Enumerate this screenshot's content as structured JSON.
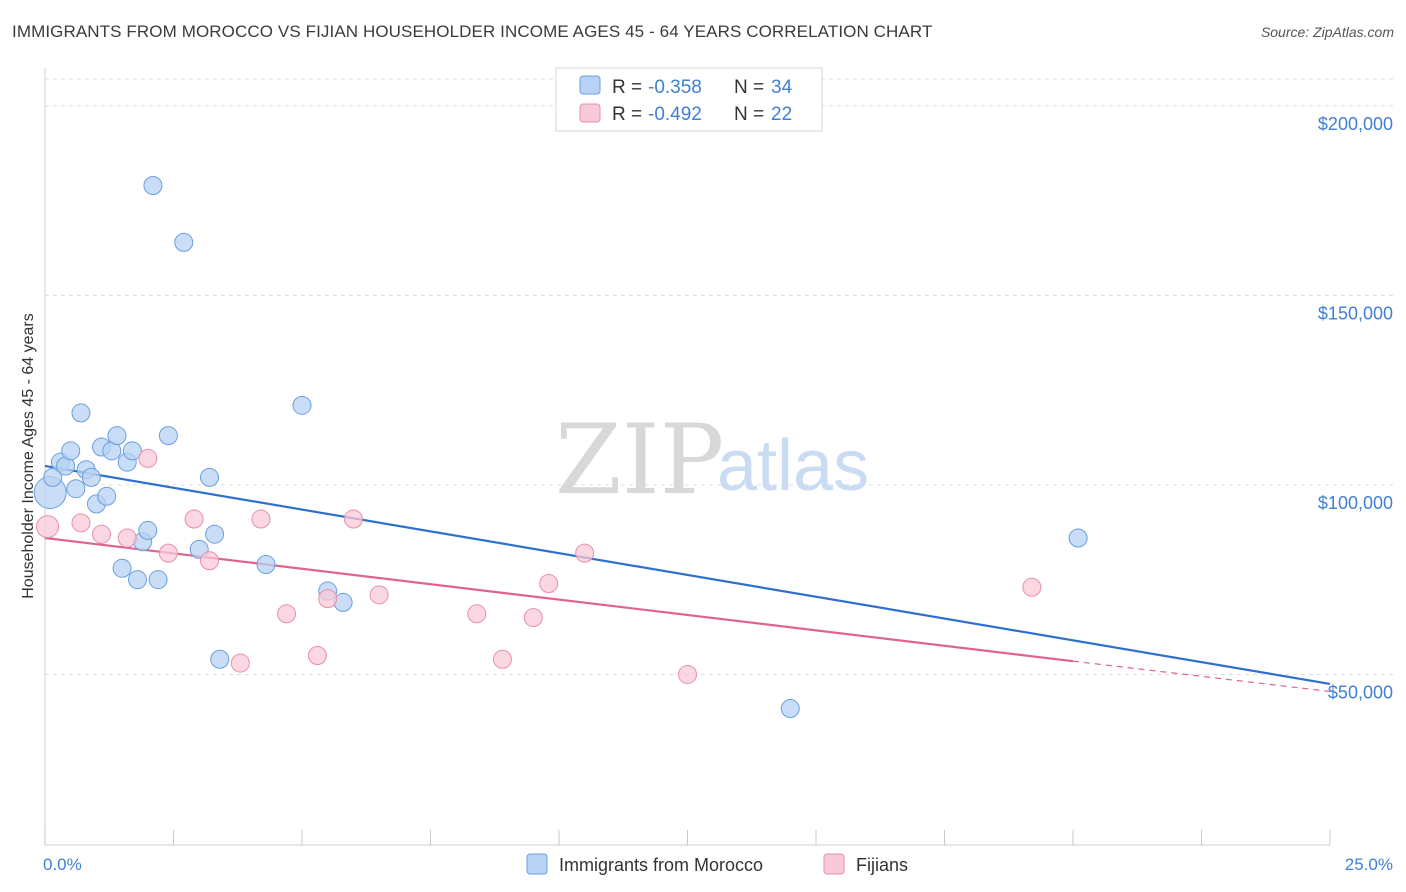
{
  "title": "IMMIGRANTS FROM MOROCCO VS FIJIAN HOUSEHOLDER INCOME AGES 45 - 64 YEARS CORRELATION CHART",
  "source": "Source: ZipAtlas.com",
  "watermark": {
    "zip": "ZIP",
    "atlas": "atlas"
  },
  "colors": {
    "blue_fill": "#b8d2f3",
    "blue_stroke": "#6a9fe0",
    "blue_line": "#2f6fcf",
    "pink_fill": "#f8c9d7",
    "pink_stroke": "#e88fab",
    "pink_line": "#e0628f",
    "grid": "#dcdcdc",
    "axis_text": "#3f7fd6"
  },
  "legend_box": [
    {
      "r_label": "R = ",
      "r_value": "-0.358",
      "n_label": "N = ",
      "n_value": "34"
    },
    {
      "r_label": "R = ",
      "r_value": "-0.492",
      "n_label": "N = ",
      "n_value": "22"
    }
  ],
  "chart_data": {
    "type": "scatter",
    "title": "IMMIGRANTS FROM MOROCCO VS FIJIAN HOUSEHOLDER INCOME AGES 45 - 64 YEARS CORRELATION CHART",
    "xlabel": "",
    "ylabel": "Householder Income Ages 45 - 64 years",
    "xlim": [
      0,
      25
    ],
    "ylim": [
      5000,
      210000
    ],
    "x_tick_labels": [
      {
        "value": 0,
        "label": "0.0%"
      },
      {
        "value": 25,
        "label": "25.0%"
      }
    ],
    "y_tick_labels": [
      {
        "value": 200000,
        "label": "$200,000"
      },
      {
        "value": 150000,
        "label": "$150,000"
      },
      {
        "value": 100000,
        "label": "$100,000"
      },
      {
        "value": 50000,
        "label": "$50,000"
      }
    ],
    "y_gridlines": [
      50000,
      100000,
      150000,
      200000
    ],
    "x_ticks": [
      0,
      2.5,
      5,
      7.5,
      10,
      12.5,
      15,
      17.5,
      20,
      22.5,
      25
    ],
    "series": [
      {
        "name": "Immigrants from Morocco",
        "color": "blue",
        "R": -0.358,
        "N": 34,
        "trend": {
          "x": [
            0,
            25
          ],
          "y": [
            105000,
            47500
          ]
        },
        "points": [
          {
            "x": 0.1,
            "y": 98000,
            "size": 16
          },
          {
            "x": 0.15,
            "y": 102000,
            "size": 9
          },
          {
            "x": 0.3,
            "y": 106000,
            "size": 9
          },
          {
            "x": 0.4,
            "y": 105000,
            "size": 9
          },
          {
            "x": 0.5,
            "y": 109000,
            "size": 9
          },
          {
            "x": 0.6,
            "y": 99000,
            "size": 9
          },
          {
            "x": 0.7,
            "y": 119000,
            "size": 9
          },
          {
            "x": 0.8,
            "y": 104000,
            "size": 9
          },
          {
            "x": 0.9,
            "y": 102000,
            "size": 9
          },
          {
            "x": 1.0,
            "y": 95000,
            "size": 9
          },
          {
            "x": 1.1,
            "y": 110000,
            "size": 9
          },
          {
            "x": 1.2,
            "y": 97000,
            "size": 9
          },
          {
            "x": 1.3,
            "y": 109000,
            "size": 9
          },
          {
            "x": 1.4,
            "y": 113000,
            "size": 9
          },
          {
            "x": 1.5,
            "y": 78000,
            "size": 9
          },
          {
            "x": 1.6,
            "y": 106000,
            "size": 9
          },
          {
            "x": 1.7,
            "y": 109000,
            "size": 9
          },
          {
            "x": 1.8,
            "y": 75000,
            "size": 9
          },
          {
            "x": 1.9,
            "y": 85000,
            "size": 9
          },
          {
            "x": 2.0,
            "y": 88000,
            "size": 9
          },
          {
            "x": 2.1,
            "y": 179000,
            "size": 9
          },
          {
            "x": 2.2,
            "y": 75000,
            "size": 9
          },
          {
            "x": 2.4,
            "y": 113000,
            "size": 9
          },
          {
            "x": 2.7,
            "y": 164000,
            "size": 9
          },
          {
            "x": 3.0,
            "y": 83000,
            "size": 9
          },
          {
            "x": 3.2,
            "y": 102000,
            "size": 9
          },
          {
            "x": 3.3,
            "y": 87000,
            "size": 9
          },
          {
            "x": 3.4,
            "y": 54000,
            "size": 9
          },
          {
            "x": 4.3,
            "y": 79000,
            "size": 9
          },
          {
            "x": 5.0,
            "y": 121000,
            "size": 9
          },
          {
            "x": 5.5,
            "y": 72000,
            "size": 9
          },
          {
            "x": 5.8,
            "y": 69000,
            "size": 9
          },
          {
            "x": 14.5,
            "y": 41000,
            "size": 9
          },
          {
            "x": 20.1,
            "y": 86000,
            "size": 9
          }
        ]
      },
      {
        "name": "Fijians",
        "color": "pink",
        "R": -0.492,
        "N": 22,
        "trend": {
          "x": [
            0,
            20
          ],
          "y": [
            86000,
            53500
          ]
        },
        "trend_dashed": {
          "x": [
            20,
            25
          ],
          "y": [
            53500,
            45500
          ]
        },
        "points": [
          {
            "x": 0.05,
            "y": 89000,
            "size": 11
          },
          {
            "x": 0.7,
            "y": 90000,
            "size": 9
          },
          {
            "x": 1.1,
            "y": 87000,
            "size": 9
          },
          {
            "x": 1.6,
            "y": 86000,
            "size": 9
          },
          {
            "x": 2.4,
            "y": 82000,
            "size": 9
          },
          {
            "x": 2.0,
            "y": 107000,
            "size": 9
          },
          {
            "x": 2.9,
            "y": 91000,
            "size": 9
          },
          {
            "x": 3.2,
            "y": 80000,
            "size": 9
          },
          {
            "x": 3.8,
            "y": 53000,
            "size": 9
          },
          {
            "x": 4.2,
            "y": 91000,
            "size": 9
          },
          {
            "x": 4.7,
            "y": 66000,
            "size": 9
          },
          {
            "x": 5.3,
            "y": 55000,
            "size": 9
          },
          {
            "x": 5.5,
            "y": 70000,
            "size": 9
          },
          {
            "x": 6.0,
            "y": 91000,
            "size": 9
          },
          {
            "x": 6.5,
            "y": 71000,
            "size": 9
          },
          {
            "x": 8.4,
            "y": 66000,
            "size": 9
          },
          {
            "x": 8.9,
            "y": 54000,
            "size": 9
          },
          {
            "x": 9.5,
            "y": 65000,
            "size": 9
          },
          {
            "x": 9.8,
            "y": 74000,
            "size": 9
          },
          {
            "x": 10.5,
            "y": 82000,
            "size": 9
          },
          {
            "x": 12.5,
            "y": 50000,
            "size": 9
          },
          {
            "x": 19.2,
            "y": 73000,
            "size": 9
          }
        ]
      }
    ]
  }
}
